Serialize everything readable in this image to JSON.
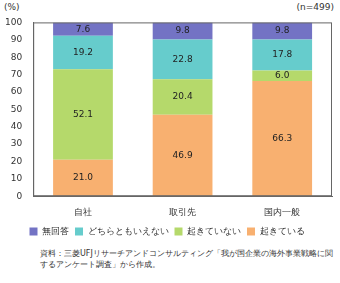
{
  "chart_data": {
    "type": "bar",
    "stacked": true,
    "ylabel": "(%)",
    "annotation": "(n=499)",
    "source": "資料：三菱UFJリサーチアンドコンサルティング「我が国企業の海外事業戦略に関するアンケート調査」から作成。",
    "categories": [
      "自社",
      "取引先",
      "国内一般"
    ],
    "series": [
      {
        "name": "起きている",
        "color": "#f8b070",
        "values": [
          21.0,
          46.9,
          66.3
        ],
        "value_labels": [
          "21.0",
          "46.9",
          "66.3"
        ]
      },
      {
        "name": "起きていない",
        "color": "#b5d96b",
        "values": [
          52.1,
          20.4,
          6.0
        ],
        "value_labels": [
          "52.1",
          "20.4",
          "6.0"
        ]
      },
      {
        "name": "どちらともいえない",
        "color": "#66cccc",
        "values": [
          19.2,
          22.8,
          17.8
        ],
        "value_labels": [
          "19.2",
          "22.8",
          "17.8"
        ]
      },
      {
        "name": "無回答",
        "color": "#7373c4",
        "values": [
          7.6,
          9.8,
          9.8
        ],
        "value_labels": [
          "7.6",
          "9.8",
          "9.8"
        ]
      }
    ],
    "ylim": [
      0,
      100
    ],
    "yticks": [
      0,
      10,
      20,
      30,
      40,
      50,
      60,
      70,
      80,
      90,
      100
    ],
    "grid": false,
    "legend": "bottom",
    "data_labels": true
  }
}
